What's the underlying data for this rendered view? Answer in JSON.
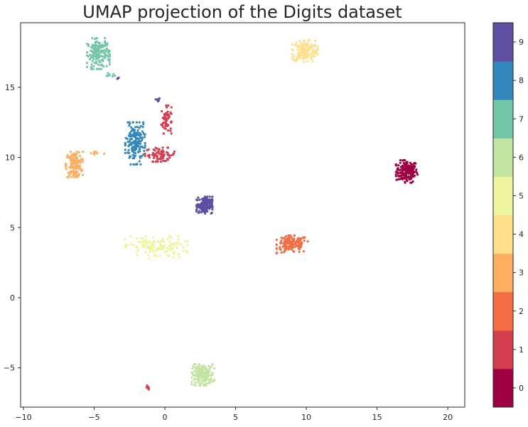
{
  "chart_data": {
    "type": "scatter",
    "title": "UMAP projection of the Digits dataset",
    "xlabel": "",
    "ylabel": "",
    "xlim": [
      -10.2,
      21.2
    ],
    "ylim": [
      -7.8,
      19.6
    ],
    "xticks": [
      -10,
      -5,
      0,
      5,
      10,
      15,
      20
    ],
    "yticks": [
      -5,
      0,
      5,
      10,
      15
    ],
    "xtick_labels": [
      "−10",
      "−5",
      "0",
      "5",
      "10",
      "15",
      "20"
    ],
    "ytick_labels": [
      "−5",
      "0",
      "5",
      "10",
      "15"
    ],
    "grid": false,
    "colormap": "Spectral",
    "colorbar": {
      "labels": [
        "0",
        "1",
        "2",
        "3",
        "4",
        "5",
        "6",
        "7",
        "8",
        "9"
      ],
      "colors": [
        "#9e0142",
        "#d53e4f",
        "#f46d43",
        "#fdae61",
        "#fee08b",
        "#eef59e",
        "#c1e5a0",
        "#72c7a6",
        "#3288bd",
        "#5e4fa2"
      ]
    },
    "clusters": [
      {
        "digit": 0,
        "center": [
          17.1,
          9.0
        ],
        "spread": [
          0.38,
          0.4
        ],
        "count": 180
      },
      {
        "digit": 1,
        "center": [
          0.1,
          12.7
        ],
        "spread": [
          0.18,
          0.5
        ],
        "count": 60
      },
      {
        "digit": 1,
        "center": [
          -0.3,
          10.2
        ],
        "spread": [
          0.55,
          0.25
        ],
        "count": 70
      },
      {
        "digit": 1,
        "center": [
          -1.3,
          -6.4
        ],
        "spread": [
          0.08,
          0.07
        ],
        "count": 6
      },
      {
        "digit": 2,
        "center": [
          9.0,
          3.8
        ],
        "spread": [
          0.55,
          0.32
        ],
        "count": 150
      },
      {
        "digit": 3,
        "center": [
          -6.4,
          9.5
        ],
        "spread": [
          0.3,
          0.45
        ],
        "count": 140
      },
      {
        "digit": 3,
        "center": [
          -4.9,
          10.3
        ],
        "spread": [
          0.35,
          0.1
        ],
        "count": 10
      },
      {
        "digit": 4,
        "center": [
          9.9,
          17.6
        ],
        "spread": [
          0.45,
          0.4
        ],
        "count": 150
      },
      {
        "digit": 5,
        "center": [
          -0.6,
          3.6
        ],
        "spread": [
          1.1,
          0.4
        ],
        "count": 140
      },
      {
        "digit": 6,
        "center": [
          2.7,
          -5.5
        ],
        "spread": [
          0.4,
          0.38
        ],
        "count": 170
      },
      {
        "digit": 7,
        "center": [
          -4.7,
          17.4
        ],
        "spread": [
          0.4,
          0.55
        ],
        "count": 160
      },
      {
        "digit": 7,
        "center": [
          -3.9,
          15.9
        ],
        "spread": [
          0.22,
          0.1
        ],
        "count": 8
      },
      {
        "digit": 8,
        "center": [
          -2.1,
          11.0
        ],
        "spread": [
          0.35,
          0.75
        ],
        "count": 160
      },
      {
        "digit": 9,
        "center": [
          2.8,
          6.6
        ],
        "spread": [
          0.28,
          0.3
        ],
        "count": 160
      },
      {
        "digit": 9,
        "center": [
          -0.5,
          14.1
        ],
        "spread": [
          0.08,
          0.08
        ],
        "count": 6
      },
      {
        "digit": 9,
        "center": [
          -3.3,
          15.6
        ],
        "spread": [
          0.06,
          0.05
        ],
        "count": 4
      }
    ]
  }
}
